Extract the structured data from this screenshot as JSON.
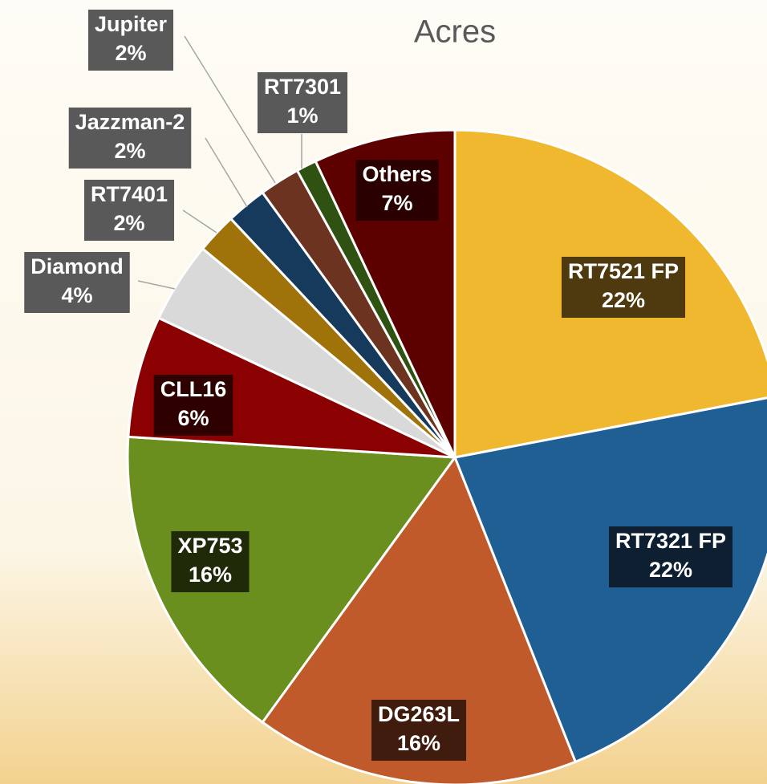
{
  "chart_data": {
    "type": "pie",
    "title": "Acres",
    "categories": [
      "RT7521 FP",
      "RT7321 FP",
      "DG263L",
      "XP753",
      "CLL16",
      "Diamond",
      "RT7401",
      "Jazzman-2",
      "Jupiter",
      "RT7301",
      "Others"
    ],
    "values": [
      22,
      22,
      16,
      16,
      6,
      4,
      2,
      2,
      2,
      1,
      7
    ],
    "value_labels": [
      "22%",
      "22%",
      "16%",
      "16%",
      "6%",
      "4%",
      "2%",
      "2%",
      "2%",
      "1%",
      "7%"
    ],
    "colors": [
      "#f0b82e",
      "#1f5f93",
      "#c05a2a",
      "#6a8f1e",
      "#8b0000",
      "#d9d9d9",
      "#a0720a",
      "#163a5c",
      "#6b3320",
      "#2f5212",
      "#5c0000"
    ]
  }
}
